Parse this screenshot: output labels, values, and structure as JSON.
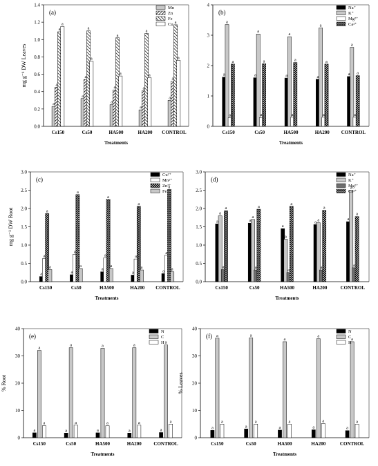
{
  "patterns": {
    "black": "#000000",
    "lightgray": "#c8c8c8",
    "white": "#ffffff",
    "darkgray": "#6e6e6e"
  },
  "chart_data": [
    {
      "panel": "(a)",
      "type": "bar",
      "categories": [
        "Cs150",
        "Cs50",
        "HA500",
        "HA200",
        "CONTROL"
      ],
      "series": [
        {
          "name": "Mn",
          "fill": "lightgray",
          "values": [
            0.23,
            0.32,
            0.25,
            0.19,
            0.3
          ]
        },
        {
          "name": "Zn",
          "fill": "diag-dense",
          "values": [
            0.45,
            0.54,
            0.42,
            0.41,
            0.52
          ]
        },
        {
          "name": "Fe",
          "fill": "diag-sparse",
          "values": [
            1.09,
            1.1,
            1.02,
            1.07,
            1.17
          ]
        },
        {
          "name": "Cu",
          "fill": "white",
          "values": [
            1.15,
            0.75,
            0.58,
            0.56,
            0.76
          ]
        }
      ],
      "labels": [
        [
          "a",
          "a",
          "a",
          "a"
        ],
        [
          "a",
          "a",
          "a",
          "a"
        ],
        [
          "a",
          "a",
          "a",
          "a"
        ],
        [
          "a",
          "a",
          "a",
          "a"
        ],
        [
          "a",
          "a",
          "a",
          "a"
        ]
      ],
      "ylim": [
        0,
        1.4
      ],
      "yticks": [
        "0.0",
        "0.2",
        "0.4",
        "0.6",
        "0.8",
        "1.0",
        "1.2",
        "1.4"
      ],
      "xlabel": "Treatments",
      "ylabel": "mg g⁻¹ DW Leaves"
    },
    {
      "panel": "(b)",
      "type": "bar",
      "categories": [
        "Cs150",
        "Cs50",
        "HA500",
        "HA200",
        "CONTROL"
      ],
      "series": [
        {
          "name": "Na⁺",
          "fill": "black",
          "values": [
            1.62,
            1.6,
            1.59,
            1.55,
            1.64
          ]
        },
        {
          "name": "K⁺",
          "fill": "lightgray",
          "values": [
            3.35,
            3.04,
            2.95,
            3.24,
            2.6
          ]
        },
        {
          "name": "Mg²⁺",
          "fill": "white",
          "values": [
            0.28,
            0.29,
            0.3,
            0.3,
            0.3
          ]
        },
        {
          "name": "Ca²⁺",
          "fill": "crosshatch",
          "values": [
            2.05,
            2.06,
            2.1,
            2.05,
            1.67
          ]
        }
      ],
      "labels": [
        [
          "a",
          "a",
          "a",
          "a"
        ],
        [
          "a",
          "a",
          "a",
          "a"
        ],
        [
          "a",
          "a",
          "a",
          "a"
        ],
        [
          "a",
          "a",
          "a",
          "a"
        ],
        [
          "a",
          "a",
          "a",
          "a"
        ]
      ],
      "ylim": [
        0,
        4
      ],
      "yticks": [
        "0",
        "1",
        "2",
        "3",
        "4"
      ],
      "xlabel": "Treatments",
      "ylabel": ""
    },
    {
      "panel": "(c)",
      "type": "bar",
      "categories": [
        "Cs150",
        "Cs50",
        "HA500",
        "HA200",
        "CONTROL"
      ],
      "series": [
        {
          "name": "Cu²⁺",
          "fill": "black",
          "values": [
            0.14,
            0.19,
            0.27,
            0.18,
            0.22
          ]
        },
        {
          "name": "Mn²⁺",
          "fill": "white",
          "values": [
            0.63,
            0.75,
            0.65,
            0.62,
            0.72
          ]
        },
        {
          "name": "Zn²⁺",
          "fill": "crosshatch",
          "values": [
            1.86,
            2.38,
            2.25,
            2.06,
            2.52
          ]
        },
        {
          "name": "Fe",
          "fill": "lightgray",
          "values": [
            0.33,
            0.36,
            0.36,
            0.32,
            0.27
          ]
        }
      ],
      "labels": [
        [
          "a",
          "a",
          "a",
          "a"
        ],
        [
          "a",
          "a",
          "a",
          "a"
        ],
        [
          "a",
          "a",
          "a",
          "a"
        ],
        [
          "a",
          "a",
          "a",
          "a"
        ],
        [
          "a",
          "a",
          "a",
          "a"
        ]
      ],
      "ylim": [
        0,
        3.0
      ],
      "yticks": [
        "0.0",
        "0.5",
        "1.0",
        "1.5",
        "2.0",
        "2.5",
        "3.0"
      ],
      "xlabel": "Treatments",
      "ylabel": "mg g⁻¹ DW Root"
    },
    {
      "panel": "(d)",
      "type": "bar",
      "categories": [
        "Cs150",
        "Cs50",
        "HA500",
        "HA200",
        "CONTROL"
      ],
      "series": [
        {
          "name": "Na⁺",
          "fill": "black",
          "values": [
            1.58,
            1.6,
            1.45,
            1.56,
            1.64
          ]
        },
        {
          "name": "K⁺",
          "fill": "lightgray",
          "values": [
            1.8,
            1.7,
            1.16,
            1.61,
            2.5
          ]
        },
        {
          "name": "Mg²⁺",
          "fill": "darkgray",
          "values": [
            0.33,
            0.32,
            0.25,
            0.32,
            0.38
          ]
        },
        {
          "name": "Ca²⁺",
          "fill": "crosshatch",
          "values": [
            1.94,
            1.98,
            2.06,
            1.95,
            1.78
          ]
        }
      ],
      "labels": [
        [
          "a",
          "a",
          "a",
          "a"
        ],
        [
          "a",
          "a",
          "a",
          "a"
        ],
        [
          "a",
          "a",
          "a",
          "a"
        ],
        [
          "a",
          "a",
          "a",
          "a"
        ],
        [
          "a",
          "a",
          "a",
          "a"
        ]
      ],
      "ylim": [
        0,
        3.0
      ],
      "yticks": [
        "0.0",
        "0.5",
        "1.0",
        "1.5",
        "2.0",
        "2.5",
        "3.0"
      ],
      "xlabel": "Treatments",
      "ylabel": ""
    },
    {
      "panel": "(e)",
      "type": "bar",
      "categories": [
        "Cs150",
        "Cs50",
        "HA500",
        "HA200",
        "CONTROL"
      ],
      "series": [
        {
          "name": "N",
          "fill": "black",
          "values": [
            1.8,
            1.7,
            1.8,
            1.7,
            1.9
          ]
        },
        {
          "name": "C",
          "fill": "lightgray",
          "values": [
            32.0,
            33.0,
            32.8,
            33.0,
            34.0
          ]
        },
        {
          "name": "H",
          "fill": "white",
          "values": [
            4.4,
            4.6,
            4.4,
            4.6,
            5.0
          ]
        }
      ],
      "labels": [
        [
          "a",
          "a",
          "a"
        ],
        [
          "a",
          "a",
          "a"
        ],
        [
          "a",
          "a",
          "a"
        ],
        [
          "a",
          "a",
          "a"
        ],
        [
          "a",
          "a",
          "a"
        ]
      ],
      "ylim": [
        0,
        40
      ],
      "yticks": [
        "0",
        "10",
        "20",
        "30",
        "40"
      ],
      "xlabel": "Treatments",
      "ylabel": "% Root"
    },
    {
      "panel": "(f)",
      "type": "bar",
      "categories": [
        "Cs150",
        "Cs50",
        "HA500",
        "HA200",
        "CONTROL"
      ],
      "series": [
        {
          "name": "N",
          "fill": "black",
          "values": [
            2.7,
            3.2,
            2.8,
            2.9,
            2.6
          ]
        },
        {
          "name": "C",
          "fill": "lightgray",
          "values": [
            36.5,
            36.6,
            35.2,
            36.3,
            35.2
          ]
        },
        {
          "name": "H",
          "fill": "white",
          "values": [
            5.0,
            5.0,
            5.0,
            5.2,
            5.0
          ]
        }
      ],
      "labels": [
        [
          "a",
          "a",
          "a"
        ],
        [
          "a",
          "a",
          "a"
        ],
        [
          "a",
          "a",
          "a"
        ],
        [
          "a",
          "a",
          "a"
        ],
        [
          "a",
          "a",
          "a"
        ]
      ],
      "ylim": [
        0,
        40
      ],
      "yticks": [
        "0",
        "10",
        "20",
        "30",
        "40"
      ],
      "xlabel": "Treatments",
      "ylabel": "% Leaves"
    }
  ]
}
